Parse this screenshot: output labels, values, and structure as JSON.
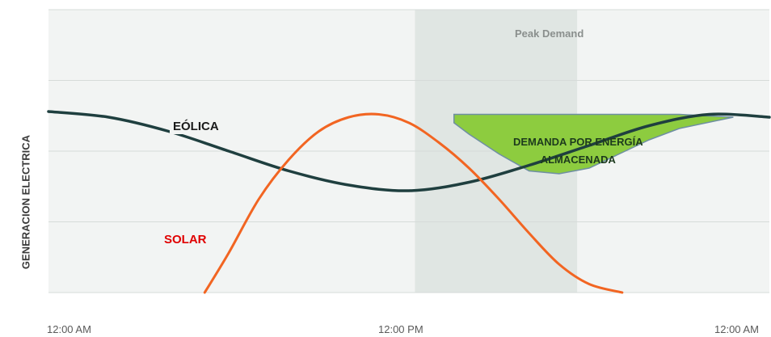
{
  "chart_data": {
    "type": "line",
    "ylabel": "GENERACION ELECTRICA",
    "x_ticks": [
      "12:00 AM",
      "12:00 PM",
      "12:00 AM"
    ],
    "xlim": [
      0,
      24
    ],
    "ylim": [
      0,
      100
    ],
    "grid": true,
    "grid_y": [
      25,
      50,
      75,
      100
    ],
    "highlight": {
      "label": "Peak Demand",
      "x_range": [
        12.2,
        17.6
      ]
    },
    "series": [
      {
        "name": "EÓLICA",
        "color": "#1f3f3f",
        "x": [
          0,
          2,
          4,
          6,
          8,
          10,
          12,
          14,
          16,
          18,
          20,
          22,
          24
        ],
        "y": [
          64,
          62,
          57,
          50,
          43,
          38,
          36,
          39,
          45,
          52,
          59,
          63,
          62
        ]
      },
      {
        "name": "SOLAR",
        "color": "#f26522",
        "x": [
          5.2,
          6,
          7,
          8,
          9,
          10,
          11,
          12,
          13,
          14,
          15,
          16,
          17,
          18,
          19.1
        ],
        "y": [
          0,
          14,
          33,
          47,
          57,
          62,
          63,
          60,
          53,
          44,
          33,
          21,
          10,
          3,
          0
        ]
      }
    ],
    "fill_area": {
      "label": [
        "DEMANDA POR ENERGÍA",
        "ALMACENADA"
      ],
      "color": "#8dcc3f",
      "x": [
        13.5,
        14,
        15,
        16,
        17,
        18,
        19,
        20,
        21,
        22.8
      ],
      "top_y": [
        63,
        63,
        63,
        63,
        63,
        63,
        63,
        63,
        63,
        62
      ],
      "bottom_y": [
        60,
        56,
        49,
        43,
        42,
        44,
        49,
        54,
        58,
        62
      ]
    },
    "annotations": [
      {
        "text": "EÓLICA",
        "color": "#1a1a1a"
      },
      {
        "text": "SOLAR",
        "color": "#e00000"
      }
    ]
  }
}
